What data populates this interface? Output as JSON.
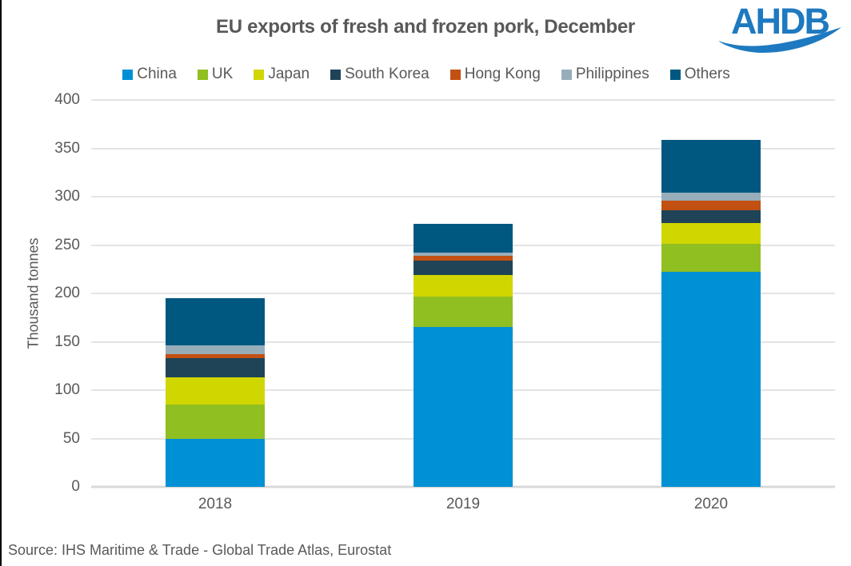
{
  "header": {
    "title": "EU exports of fresh and frozen pork, December",
    "logo_text": "AHDB",
    "logo_color": "#1e7ac0"
  },
  "source": "Source: IHS Maritime & Trade - Global Trade Atlas, Eurostat",
  "colors": {
    "text": "#595959",
    "gridline": "#e4e4e4",
    "axisline": "#d9d9d9",
    "border": "#000000"
  },
  "chart_data": {
    "type": "bar",
    "stacked": true,
    "title": "EU exports of fresh and frozen pork, December",
    "xlabel": "",
    "ylabel": "Thousand tonnes",
    "ylim": [
      0,
      400
    ],
    "ytick_step": 50,
    "grid": true,
    "legend_position": "top",
    "categories": [
      "2018",
      "2019",
      "2020"
    ],
    "series": [
      {
        "name": "China",
        "color": "#0090d4",
        "values": [
          50,
          165,
          222
        ]
      },
      {
        "name": "UK",
        "color": "#90bf21",
        "values": [
          35,
          32,
          29
        ]
      },
      {
        "name": "Japan",
        "color": "#d0d600",
        "values": [
          28,
          22,
          22
        ]
      },
      {
        "name": "South Korea",
        "color": "#1f4457",
        "values": [
          20,
          15,
          13
        ]
      },
      {
        "name": "Hong Kong",
        "color": "#c25012",
        "values": [
          4,
          5,
          10
        ]
      },
      {
        "name": "Philippines",
        "color": "#97aeba",
        "values": [
          9,
          3,
          8
        ]
      },
      {
        "name": "Others",
        "color": "#005880",
        "values": [
          49,
          30,
          55
        ]
      }
    ]
  }
}
